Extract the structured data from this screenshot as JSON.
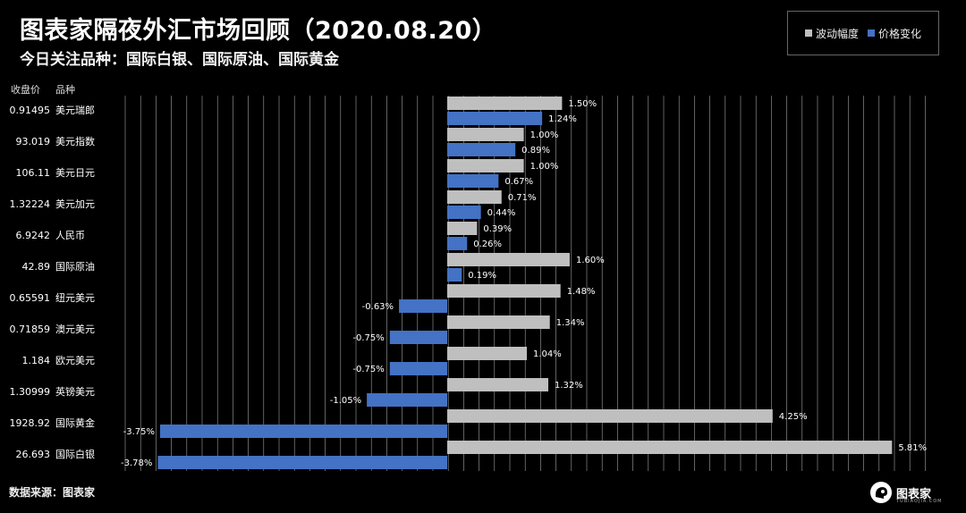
{
  "title": "图表家隔夜外汇市场回顾（2020.08.20）",
  "subtitle": "今日关注品种：国际白银、国际原油、国际黄金",
  "header": {
    "close_label": "收盘价",
    "name_label": "品种"
  },
  "legend": {
    "volatility": "波动幅度",
    "change": "价格变化"
  },
  "source": "数据来源：图表家",
  "logo": {
    "text": "图表家",
    "sub": "TUBIAOJIA.COM"
  },
  "colors": {
    "volatility": "#bfbfbf",
    "change": "#4472c4",
    "background": "#000000",
    "grid": "#d9d9d9"
  },
  "chart_data": {
    "type": "bar",
    "orientation": "horizontal",
    "unit": "%",
    "xlim": [
      -4,
      6
    ],
    "grid": true,
    "legend_position": "top-right",
    "categories": [
      "美元瑞郎",
      "美元指数",
      "美元日元",
      "美元加元",
      "人民币",
      "国际原油",
      "纽元美元",
      "澳元美元",
      "欧元美元",
      "英镑美元",
      "国际黄金",
      "国际白银"
    ],
    "close_prices": [
      "0.91495",
      "93.019",
      "106.11",
      "1.32224",
      "6.9242",
      "42.89",
      "0.65591",
      "0.71859",
      "1.184",
      "1.30999",
      "1928.92",
      "26.693"
    ],
    "series": [
      {
        "name": "波动幅度",
        "values": [
          1.5,
          1.0,
          1.0,
          0.71,
          0.39,
          1.6,
          1.48,
          1.34,
          1.04,
          1.32,
          4.25,
          5.81
        ],
        "labels": [
          "1.50%",
          "1.00%",
          "1.00%",
          "0.71%",
          "0.39%",
          "1.60%",
          "1.48%",
          "1.34%",
          "1.04%",
          "1.32%",
          "4.25%",
          "5.81%"
        ]
      },
      {
        "name": "价格变化",
        "values": [
          1.24,
          0.89,
          0.67,
          0.44,
          0.26,
          0.19,
          -0.63,
          -0.75,
          -0.75,
          -1.05,
          -3.75,
          -3.78
        ],
        "labels": [
          "1.24%",
          "0.89%",
          "0.67%",
          "0.44%",
          "0.26%",
          "0.19%",
          "-0.63%",
          "-0.75%",
          "-0.75%",
          "-1.05%",
          "-3.75%",
          "-3.78%"
        ]
      }
    ]
  }
}
